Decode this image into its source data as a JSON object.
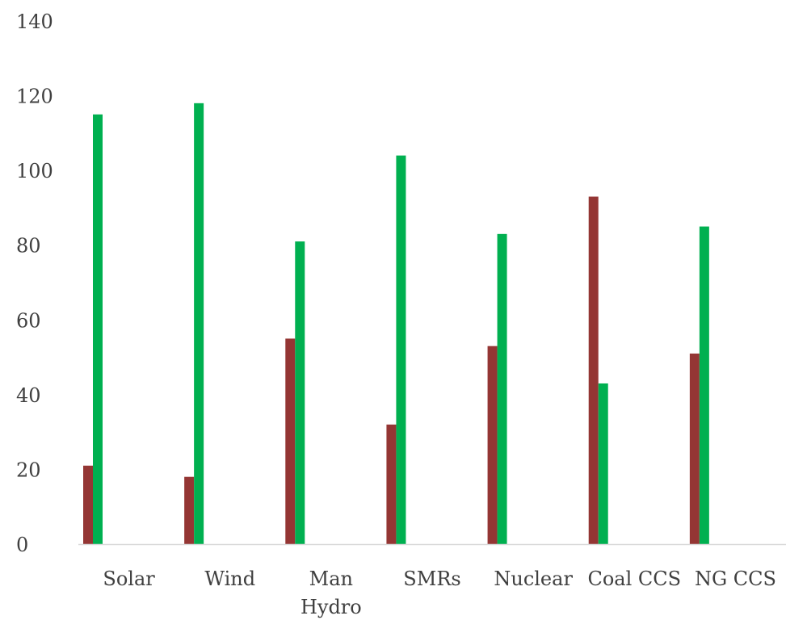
{
  "chart_data": {
    "type": "bar",
    "title": "",
    "xlabel": "",
    "ylabel": "",
    "ylim": [
      0,
      140
    ],
    "yticks": [
      0,
      20,
      40,
      60,
      80,
      100,
      120,
      140
    ],
    "grid": false,
    "legend": "none",
    "categories": [
      [
        "Solar"
      ],
      [
        "Wind"
      ],
      [
        "Man",
        "Hydro"
      ],
      [
        "SMRs"
      ],
      [
        "Nuclear"
      ],
      [
        "Coal CCS"
      ],
      [
        "NG CCS"
      ]
    ],
    "series": [
      {
        "color": "#943634",
        "values": [
          21,
          18,
          55,
          32,
          53,
          93,
          51
        ]
      },
      {
        "color": "#00b050",
        "values": [
          115,
          118,
          81,
          104,
          83,
          43,
          85
        ]
      }
    ]
  }
}
